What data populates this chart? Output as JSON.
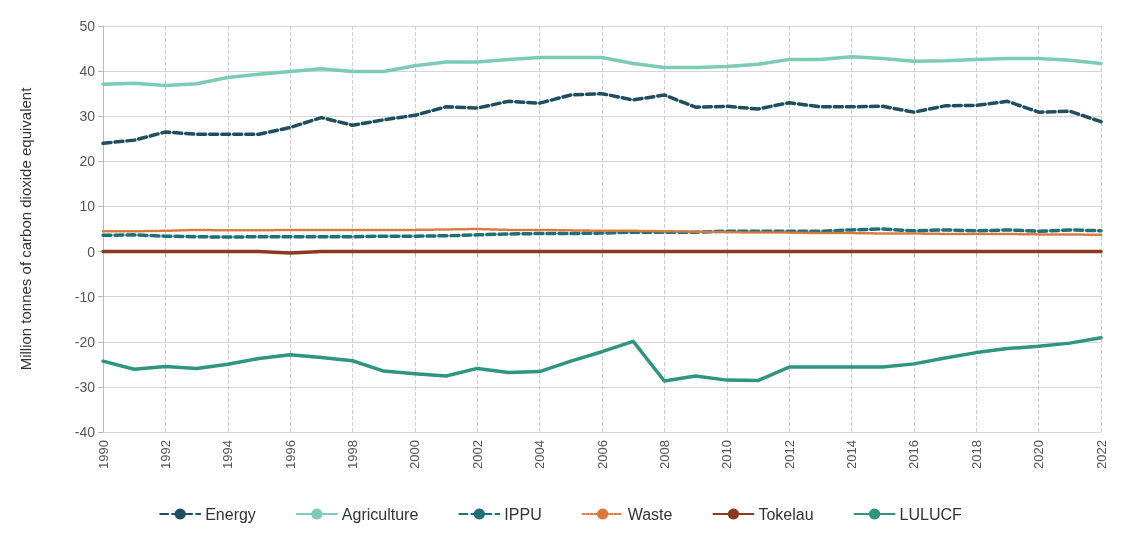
{
  "chart_data": {
    "type": "line",
    "ylabel": "Million tonnes of carbon dioxide equivalent",
    "x": [
      1990,
      1991,
      1992,
      1993,
      1994,
      1995,
      1996,
      1997,
      1998,
      1999,
      2000,
      2001,
      2002,
      2003,
      2004,
      2005,
      2006,
      2007,
      2008,
      2009,
      2010,
      2011,
      2012,
      2013,
      2014,
      2015,
      2016,
      2017,
      2018,
      2019,
      2020,
      2021,
      2022
    ],
    "xlim": [
      1990,
      2022
    ],
    "xticks": [
      1990,
      1992,
      1994,
      1996,
      1998,
      2000,
      2002,
      2004,
      2006,
      2008,
      2010,
      2012,
      2014,
      2016,
      2018,
      2020,
      2022
    ],
    "ylim": [
      -40,
      50
    ],
    "yticks": [
      -40,
      -30,
      -20,
      -10,
      0,
      10,
      20,
      30,
      40,
      50
    ],
    "grid": true,
    "legend": "bottom",
    "marker": "none",
    "series": [
      {
        "name": "Energy",
        "color": "#1f4e5f",
        "line_style": "dashed",
        "values": [
          24,
          24.7,
          26.5,
          26,
          26,
          26,
          27.5,
          29.7,
          28,
          29.2,
          30.2,
          32.1,
          31.8,
          33.3,
          32.9,
          34.7,
          35,
          33.6,
          34.7,
          32,
          32.2,
          31.6,
          33,
          32.1,
          32.1,
          32.2,
          30.9,
          32.3,
          32.4,
          33.3,
          30.9,
          31.1,
          28.8
        ]
      },
      {
        "name": "Agriculture",
        "color": "#7ccbb9",
        "line_style": "solid",
        "values": [
          37.1,
          37.3,
          36.8,
          37.2,
          38.6,
          39.3,
          39.9,
          40.5,
          39.9,
          39.9,
          41.2,
          42,
          42,
          42.6,
          43,
          43,
          43,
          41.7,
          40.8,
          40.8,
          41,
          41.5,
          42.6,
          42.6,
          43.2,
          42.8,
          42.2,
          42.3,
          42.6,
          42.8,
          42.8,
          42.4,
          41.7
        ]
      },
      {
        "name": "IPPU",
        "color": "#1e6f78",
        "line_style": "dashed",
        "values": [
          3.6,
          3.7,
          3.4,
          3.3,
          3.2,
          3.3,
          3.3,
          3.3,
          3.3,
          3.4,
          3.4,
          3.5,
          3.7,
          3.9,
          4,
          4,
          4.1,
          4.3,
          4.3,
          4.3,
          4.5,
          4.5,
          4.5,
          4.5,
          4.8,
          5,
          4.6,
          4.8,
          4.6,
          4.8,
          4.5,
          4.8,
          4.6
        ]
      },
      {
        "name": "Waste",
        "color": "#d9773c",
        "line_style": "dotted",
        "values": [
          4.5,
          4.5,
          4.6,
          4.8,
          4.7,
          4.7,
          4.8,
          4.8,
          4.8,
          4.8,
          4.8,
          4.9,
          5,
          4.8,
          4.8,
          4.7,
          4.6,
          4.6,
          4.5,
          4.4,
          4.3,
          4.2,
          4.2,
          4.1,
          4.1,
          4,
          4,
          3.9,
          3.9,
          3.9,
          3.8,
          3.8,
          3.7
        ]
      },
      {
        "name": "Tokelau",
        "color": "#8b3a1f",
        "line_style": "solid",
        "values": [
          0,
          0,
          0,
          0,
          0,
          0,
          -0.3,
          0,
          0,
          0,
          0,
          0,
          0,
          0,
          0,
          0,
          0,
          0,
          0,
          0,
          0,
          0,
          0,
          0,
          0,
          0,
          0,
          0,
          0,
          0,
          0,
          0,
          0
        ]
      },
      {
        "name": "LULUCF",
        "color": "#2e9580",
        "line_style": "solid",
        "values": [
          -24.3,
          -26.1,
          -25.5,
          -25.9,
          -25,
          -23.7,
          -22.9,
          -23.5,
          -24.2,
          -26.5,
          -27.1,
          -27.6,
          -25.9,
          -26.8,
          -26.6,
          -24.3,
          -22.2,
          -19.9,
          -28.7,
          -27.6,
          -28.5,
          -28.6,
          -25.6,
          -25.6,
          -25.6,
          -25.6,
          -24.9,
          -23.6,
          -22.4,
          -21.5,
          -21,
          -20.3,
          -19.1
        ]
      }
    ]
  }
}
